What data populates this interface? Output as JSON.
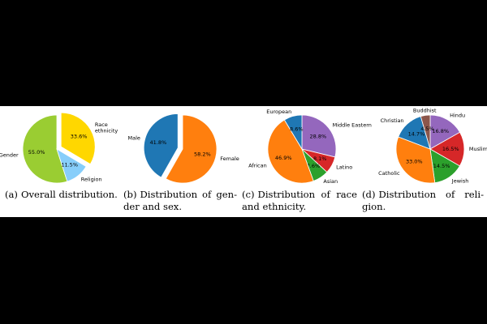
{
  "captions": [
    {
      "tag": "(a)",
      "text": "Overall distribution."
    },
    {
      "tag": "(b)",
      "text": "Distribution of gen-der and sex."
    },
    {
      "tag": "(c)",
      "text": "Distribution of race and ethnicity."
    },
    {
      "tag": "(d)",
      "text": "Distribution of reli-gion."
    }
  ],
  "chart_data": [
    {
      "type": "pie",
      "title": "",
      "slices": [
        {
          "label": "Gender",
          "value": 55.0,
          "pct_label": "55.0%",
          "color": "#9acd32"
        },
        {
          "label": "Religion",
          "value": 11.5,
          "pct_label": "11.5%",
          "color": "#87cefa"
        },
        {
          "label": "Race\nethnicity",
          "value": 33.6,
          "pct_label": "33.6%",
          "color": "#ffd700",
          "exploded": true
        }
      ]
    },
    {
      "type": "pie",
      "title": "",
      "slices": [
        {
          "label": "Male",
          "value": 41.8,
          "pct_label": "41.8%",
          "color": "#1f77b4",
          "exploded": true
        },
        {
          "label": "Female",
          "value": 58.2,
          "pct_label": "58.2%",
          "color": "#ff7f0e"
        }
      ]
    },
    {
      "type": "pie",
      "title": "",
      "slices": [
        {
          "label": "Middle Eastern",
          "value": 28.8,
          "pct_label": "28.8%",
          "color": "#9467bd"
        },
        {
          "label": "Latino",
          "value": 8.1,
          "pct_label": "8.1%",
          "color": "#d62728"
        },
        {
          "label": "Asian",
          "value": 7.6,
          "pct_label": "7.6%",
          "color": "#2ca02c"
        },
        {
          "label": "African",
          "value": 46.9,
          "pct_label": "46.9%",
          "color": "#ff7f0e"
        },
        {
          "label": "European",
          "value": 8.6,
          "pct_label": "8.6%",
          "color": "#1f77b4"
        }
      ]
    },
    {
      "type": "pie",
      "title": "",
      "slices": [
        {
          "label": "Hindu",
          "value": 16.8,
          "pct_label": "16.8%",
          "color": "#9467bd"
        },
        {
          "label": "Muslim",
          "value": 16.5,
          "pct_label": "16.5%",
          "color": "#d62728"
        },
        {
          "label": "Jewish",
          "value": 14.5,
          "pct_label": "14.5%",
          "color": "#2ca02c"
        },
        {
          "label": "Catholic",
          "value": 33.0,
          "pct_label": "33.0%",
          "color": "#ff7f0e"
        },
        {
          "label": "Christian",
          "value": 14.7,
          "pct_label": "14.7%",
          "color": "#1f77b4"
        },
        {
          "label": "Buddhist",
          "value": 4.5,
          "pct_label": "4.5%",
          "color": "#8c564b"
        }
      ]
    }
  ]
}
